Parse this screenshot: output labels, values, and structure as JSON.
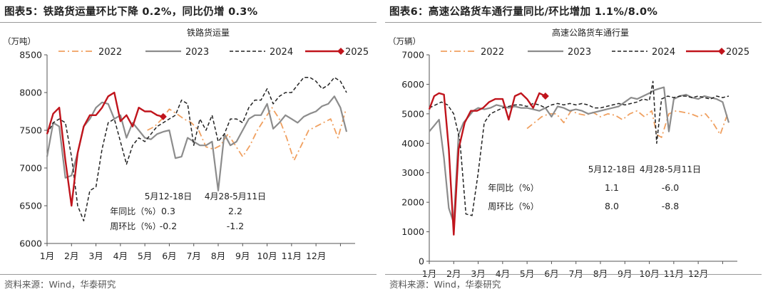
{
  "charts": [
    {
      "figure_title": "图表5：铁路货运量环比下降 0.2%，同比仍增 0.3%",
      "source": "资料来源：Wind，华泰研究",
      "chart_data": {
        "type": "line",
        "title": "铁路货运量",
        "unit": "（万吨）",
        "ylim": [
          6000,
          8500
        ],
        "yticks": [
          6000,
          6500,
          7000,
          7500,
          8000,
          8500
        ],
        "x_labels": [
          "1月",
          "2月",
          "3月",
          "4月",
          "5月",
          "6月",
          "7月",
          "8月",
          "9月",
          "10月",
          "11月",
          "12月"
        ],
        "x_range": [
          1,
          13.6
        ],
        "grid": false,
        "legend_position": "top",
        "series": [
          {
            "name": "2022",
            "color": "#f0a060",
            "dash": "9 4 2 4",
            "width": 1.8,
            "marker": false,
            "x": [
              5.1,
              5.4,
              5.7,
              6.0,
              6.3,
              6.6,
              6.9,
              7.2,
              7.5,
              7.8,
              8.1,
              8.4,
              8.7,
              9.0,
              9.3,
              9.6,
              9.9,
              10.2,
              10.5,
              10.8,
              11.1,
              11.4,
              11.7,
              12.0,
              12.3,
              12.6,
              12.9,
              13.2
            ],
            "y": [
              7500,
              7550,
              7650,
              7780,
              7720,
              7650,
              7600,
              7500,
              7280,
              7250,
              7300,
              7450,
              7300,
              7150,
              7300,
              7500,
              7650,
              7800,
              7650,
              7400,
              7100,
              7300,
              7500,
              7550,
              7600,
              7650,
              7400,
              7750
            ]
          },
          {
            "name": "2023",
            "color": "#8c8c8c",
            "dash": "",
            "width": 2.2,
            "marker": false,
            "x": [
              1.0,
              1.25,
              1.5,
              1.75,
              2.0,
              2.25,
              2.5,
              2.75,
              3.0,
              3.25,
              3.5,
              3.75,
              4.0,
              4.25,
              4.5,
              4.75,
              5.0,
              5.25,
              5.5,
              5.75,
              6.0,
              6.25,
              6.5,
              6.75,
              7.0,
              7.25,
              7.5,
              7.75,
              8.0,
              8.25,
              8.5,
              8.75,
              9.0,
              9.25,
              9.5,
              9.75,
              10.0,
              10.25,
              10.5,
              10.75,
              11.0,
              11.25,
              11.5,
              11.75,
              12.0,
              12.25,
              12.5,
              12.75,
              13.0,
              13.25
            ],
            "y": [
              7150,
              7600,
              7550,
              6870,
              6900,
              7200,
              7550,
              7650,
              7800,
              7870,
              7850,
              7650,
              7700,
              7400,
              7600,
              7500,
              7400,
              7380,
              7450,
              7480,
              7500,
              7130,
              7150,
              7400,
              7350,
              7300,
              7300,
              7350,
              6700,
              7450,
              7300,
              7350,
              7500,
              7650,
              7700,
              7700,
              7850,
              7520,
              7600,
              7700,
              7650,
              7600,
              7680,
              7720,
              7750,
              7820,
              7850,
              7950,
              7800,
              7480
            ]
          },
          {
            "name": "2024",
            "color": "#222222",
            "dash": "5 3",
            "width": 1.5,
            "marker": false,
            "x": [
              1.0,
              1.25,
              1.5,
              1.75,
              2.0,
              2.25,
              2.5,
              2.75,
              3.0,
              3.25,
              3.5,
              3.75,
              4.0,
              4.25,
              4.5,
              4.75,
              5.0,
              5.25,
              5.5,
              5.75,
              6.0,
              6.25,
              6.5,
              6.75,
              7.0,
              7.25,
              7.5,
              7.75,
              8.0,
              8.25,
              8.5,
              8.75,
              9.0,
              9.25,
              9.5,
              9.75,
              10.0,
              10.25,
              10.5,
              10.75,
              11.0,
              11.25,
              11.5,
              11.75,
              12.0,
              12.25,
              12.5,
              12.75,
              13.0,
              13.25
            ],
            "y": [
              7450,
              7600,
              7650,
              7600,
              7150,
              6500,
              6300,
              6700,
              6750,
              7250,
              7600,
              7650,
              7350,
              7050,
              7300,
              7400,
              7350,
              7450,
              7550,
              7600,
              7650,
              7700,
              7900,
              7850,
              7300,
              7650,
              7500,
              7700,
              7350,
              7450,
              7650,
              7650,
              7600,
              7800,
              7900,
              7900,
              8050,
              7850,
              7950,
              8000,
              8000,
              8100,
              8200,
              8200,
              8150,
              8050,
              8100,
              8200,
              8150,
              8000
            ]
          },
          {
            "name": "2025",
            "color": "#c0141c",
            "dash": "",
            "width": 2.4,
            "marker": true,
            "x": [
              1.0,
              1.25,
              1.5,
              1.75,
              2.0,
              2.25,
              2.5,
              2.75,
              3.0,
              3.25,
              3.5,
              3.75,
              4.0,
              4.25,
              4.5,
              4.75,
              5.0,
              5.25,
              5.5,
              5.75
            ],
            "y": [
              7450,
              7720,
              7800,
              7100,
              6500,
              7200,
              7550,
              7700,
              7700,
              7800,
              7950,
              8000,
              7620,
              7700,
              7550,
              7800,
              7750,
              7750,
              7700,
              7680
            ]
          }
        ],
        "annotation_table": {
          "headers": [
            "5月12-18日",
            "4月28-5月11日"
          ],
          "rows": [
            {
              "label": "年同比（%）",
              "values": [
                "0.3",
                "2.2"
              ]
            },
            {
              "label": "周环比（%）",
              "values": [
                "-0.2",
                "-1.2"
              ]
            }
          ]
        }
      }
    },
    {
      "figure_title": "图表6：高速公路货车通行量同比/环比增加 1.1%/8.0%",
      "source": "资料来源：Wind，华泰研究",
      "chart_data": {
        "type": "line",
        "title": "高速公路货车通行量",
        "unit": "（万辆）",
        "ylim": [
          0,
          7000
        ],
        "yticks": [
          0,
          1000,
          2000,
          3000,
          4000,
          5000,
          6000,
          7000
        ],
        "x_labels": [
          "1月",
          "2月",
          "3月",
          "4月",
          "5月",
          "6月",
          "7月",
          "8月",
          "9月",
          "10月",
          "11月",
          "12月"
        ],
        "x_range": [
          1,
          13.6
        ],
        "grid": false,
        "legend_position": "top",
        "series": [
          {
            "name": "2022",
            "color": "#f0a060",
            "dash": "9 4 2 4",
            "width": 1.8,
            "marker": false,
            "x": [
              5.0,
              5.3,
              5.6,
              5.9,
              6.2,
              6.5,
              6.8,
              7.1,
              7.4,
              7.7,
              8.0,
              8.3,
              8.6,
              8.9,
              9.2,
              9.5,
              9.8,
              10.1,
              10.3,
              10.5,
              10.8,
              11.1,
              11.4,
              11.7,
              12.0,
              12.3,
              12.6,
              12.9,
              13.2
            ],
            "y": [
              4500,
              4700,
              4900,
              5000,
              5000,
              4700,
              5100,
              5000,
              4950,
              5050,
              4900,
              5000,
              4950,
              4800,
              5000,
              5100,
              4900,
              5100,
              4300,
              4200,
              5000,
              5100,
              5050,
              5000,
              4900,
              5000,
              4700,
              4300,
              5000
            ]
          },
          {
            "name": "2023",
            "color": "#8c8c8c",
            "dash": "",
            "width": 2.2,
            "marker": false,
            "x": [
              1.0,
              1.2,
              1.4,
              1.6,
              1.8,
              2.0,
              2.2,
              2.4,
              2.6,
              2.8,
              3.0,
              3.25,
              3.5,
              3.75,
              4.0,
              4.25,
              4.5,
              4.75,
              5.0,
              5.25,
              5.5,
              5.75,
              6.0,
              6.25,
              6.5,
              6.75,
              7.0,
              7.25,
              7.5,
              7.75,
              8.0,
              8.25,
              8.5,
              8.75,
              9.0,
              9.25,
              9.5,
              9.75,
              10.0,
              10.2,
              10.4,
              10.6,
              10.8,
              11.0,
              11.25,
              11.5,
              11.75,
              12.0,
              12.25,
              12.5,
              12.75,
              13.0,
              13.25
            ],
            "y": [
              4400,
              4600,
              4800,
              3500,
              1800,
              1300,
              4300,
              4700,
              4900,
              5100,
              5200,
              5150,
              5200,
              5300,
              5250,
              5200,
              5250,
              5200,
              5200,
              5150,
              5100,
              5200,
              4900,
              5250,
              5200,
              5100,
              5150,
              5100,
              5000,
              5050,
              5100,
              5150,
              5200,
              5250,
              5400,
              5550,
              5500,
              5600,
              5700,
              5800,
              5850,
              5900,
              4400,
              5500,
              5600,
              5650,
              5550,
              5500,
              5600,
              5550,
              5500,
              5400,
              4700
            ]
          },
          {
            "name": "2024",
            "color": "#222222",
            "dash": "5 3",
            "width": 1.5,
            "marker": false,
            "x": [
              1.0,
              1.25,
              1.5,
              1.75,
              2.0,
              2.25,
              2.5,
              2.75,
              3.0,
              3.25,
              3.5,
              3.75,
              4.0,
              4.25,
              4.5,
              4.75,
              5.0,
              5.25,
              5.5,
              5.75,
              6.0,
              6.25,
              6.5,
              6.75,
              7.0,
              7.25,
              7.5,
              7.75,
              8.0,
              8.25,
              8.5,
              8.75,
              9.0,
              9.25,
              9.5,
              9.75,
              10.0,
              10.15,
              10.3,
              10.5,
              10.75,
              11.0,
              11.25,
              11.5,
              11.75,
              12.0,
              12.25,
              12.5,
              12.75,
              13.0,
              13.25
            ],
            "y": [
              5200,
              5300,
              5400,
              5300,
              5000,
              4100,
              1600,
              1550,
              3000,
              4700,
              5000,
              5100,
              5200,
              5250,
              5300,
              5300,
              5250,
              5350,
              5300,
              5200,
              5300,
              5350,
              5300,
              5350,
              5300,
              5350,
              5300,
              5200,
              5200,
              5250,
              5300,
              5350,
              5300,
              5350,
              5400,
              5500,
              5450,
              6100,
              4000,
              5500,
              5600,
              5550,
              5600,
              5600,
              5550,
              5600,
              5550,
              5500,
              5600,
              5550,
              5600
            ]
          },
          {
            "name": "2025",
            "color": "#c0141c",
            "dash": "",
            "width": 2.4,
            "marker": true,
            "x": [
              1.0,
              1.2,
              1.4,
              1.6,
              1.8,
              2.0,
              2.2,
              2.45,
              2.7,
              2.95,
              3.2,
              3.45,
              3.7,
              4.0,
              4.25,
              4.5,
              4.75,
              5.0,
              5.25,
              5.5,
              5.75
            ],
            "y": [
              5150,
              5600,
              5700,
              5650,
              3800,
              900,
              3800,
              4700,
              5100,
              5100,
              5200,
              5400,
              5500,
              5500,
              4800,
              5600,
              5700,
              5500,
              5200,
              5700,
              5600
            ]
          }
        ],
        "annotation_table": {
          "headers": [
            "5月12-18日",
            "4月28-5月11日"
          ],
          "rows": [
            {
              "label": "年同比（%）",
              "values": [
                "1.1",
                "-6.0"
              ]
            },
            {
              "label": "周环比（%）",
              "values": [
                "8.0",
                "-8.8"
              ]
            }
          ]
        }
      }
    }
  ]
}
